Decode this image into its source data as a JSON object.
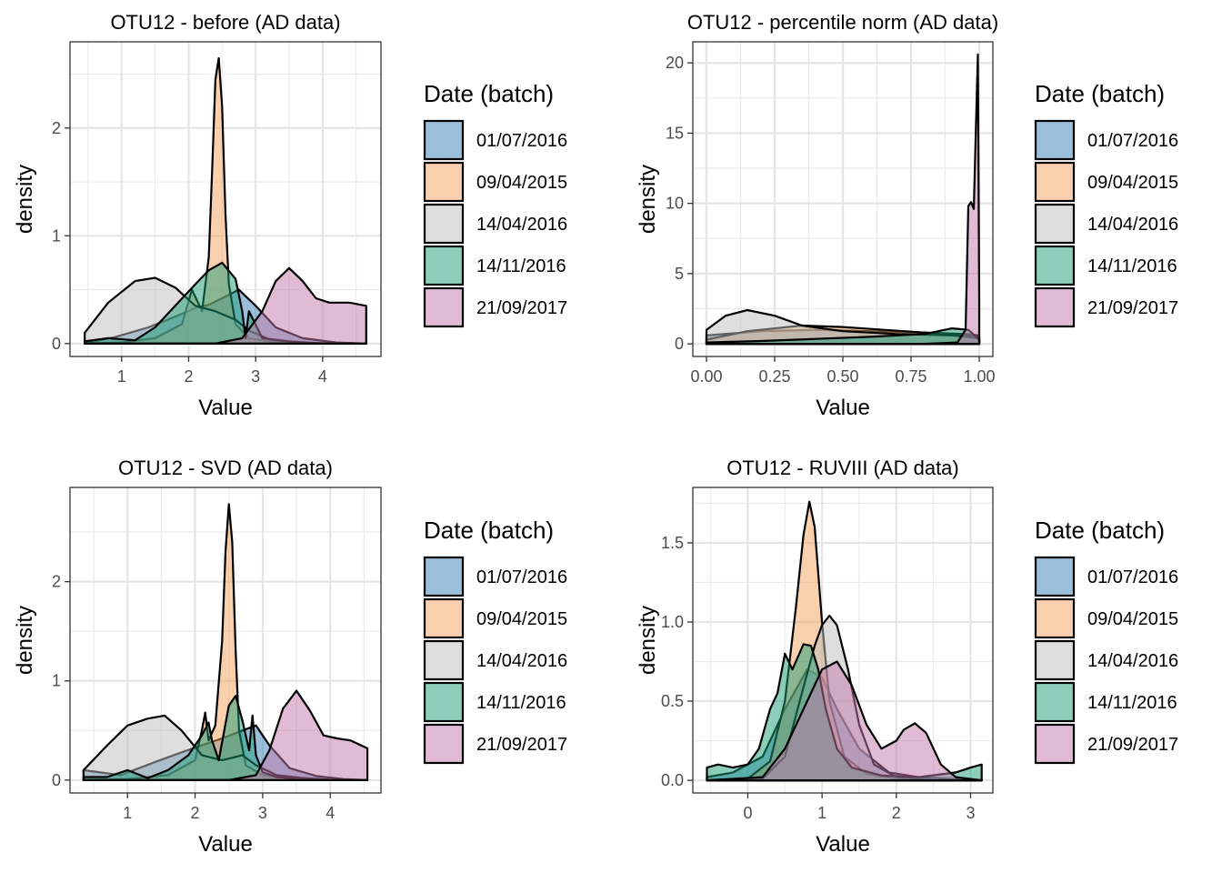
{
  "legend": {
    "title": "Date (batch)",
    "entries": [
      {
        "label": "01/07/2016",
        "color": "#377eb8"
      },
      {
        "label": "09/04/2015",
        "color": "#f4a15c"
      },
      {
        "label": "14/04/2016",
        "color": "#bdbdbd"
      },
      {
        "label": "14/11/2016",
        "color": "#1b9e77"
      },
      {
        "label": "21/09/2017",
        "color": "#c377a8"
      }
    ]
  },
  "chart_data": [
    {
      "type": "area",
      "title": "OTU12 - before (AD data)",
      "xlabel": "Value",
      "ylabel": "density",
      "xlim": [
        0.23,
        4.87
      ],
      "ylim": [
        -0.12,
        2.8
      ],
      "xticks": [
        1,
        2,
        3,
        4
      ],
      "yticks": [
        0,
        1,
        2
      ],
      "grid": true,
      "series": [
        {
          "name": "01/07/2016",
          "x": [
            0.45,
            0.9,
            1.4,
            1.8,
            2.1,
            2.3,
            2.5,
            2.75,
            3.0,
            3.3,
            3.7,
            4.2,
            4.65
          ],
          "y": [
            0,
            0.06,
            0.15,
            0.25,
            0.33,
            0.36,
            0.42,
            0.5,
            0.35,
            0.15,
            0.05,
            0.01,
            0
          ]
        },
        {
          "name": "09/04/2015",
          "x": [
            0.45,
            1.0,
            1.5,
            1.9,
            2.05,
            2.2,
            2.3,
            2.35,
            2.4,
            2.45,
            2.5,
            2.55,
            2.6,
            2.7,
            2.9,
            3.2,
            3.6,
            4.0,
            4.65
          ],
          "y": [
            0,
            0.01,
            0.05,
            0.18,
            0.5,
            0.3,
            0.8,
            1.6,
            2.45,
            2.65,
            2.2,
            1.2,
            0.55,
            0.18,
            0.05,
            0.02,
            0.01,
            0,
            0
          ]
        },
        {
          "name": "14/04/2016",
          "x": [
            0.45,
            0.8,
            1.2,
            1.5,
            1.8,
            2.1,
            2.4,
            2.7,
            2.9,
            3.2,
            3.6,
            4.2,
            4.65
          ],
          "y": [
            0.1,
            0.38,
            0.58,
            0.61,
            0.52,
            0.35,
            0.3,
            0.22,
            0.12,
            0.04,
            0.01,
            0,
            0
          ]
        },
        {
          "name": "14/11/2016",
          "x": [
            0.45,
            0.8,
            1.2,
            1.5,
            1.8,
            2.1,
            2.3,
            2.5,
            2.7,
            2.8,
            2.85,
            2.9,
            3.1,
            3.5,
            4.0,
            4.65
          ],
          "y": [
            0.02,
            0.05,
            0.03,
            0.15,
            0.35,
            0.55,
            0.68,
            0.75,
            0.6,
            0.3,
            0.05,
            0.3,
            0.05,
            0.02,
            0,
            0
          ]
        },
        {
          "name": "21/09/2017",
          "x": [
            0.45,
            1.5,
            2.4,
            2.8,
            3.1,
            3.3,
            3.5,
            3.7,
            3.9,
            4.1,
            4.4,
            4.65
          ],
          "y": [
            0,
            0,
            0,
            0.05,
            0.3,
            0.58,
            0.7,
            0.58,
            0.42,
            0.38,
            0.38,
            0.35
          ]
        }
      ]
    },
    {
      "type": "area",
      "title": "OTU12 - percentile norm (AD data)",
      "xlabel": "Value",
      "ylabel": "density",
      "xlim": [
        -0.05,
        1.05
      ],
      "ylim": [
        -0.9,
        21.5
      ],
      "xticks": [
        0,
        0.25,
        0.5,
        0.75,
        1
      ],
      "xticklabels": [
        "0.00",
        "0.25",
        "0.50",
        "0.75",
        "1.00"
      ],
      "yticks": [
        0,
        5,
        10,
        15,
        20
      ],
      "grid": true,
      "series": [
        {
          "name": "01/07/2016",
          "x": [
            0,
            0.2,
            0.4,
            0.6,
            0.8,
            0.95,
            1.0
          ],
          "y": [
            0.6,
            0.9,
            1.0,
            0.9,
            0.8,
            0.7,
            0.6
          ]
        },
        {
          "name": "09/04/2015",
          "x": [
            0,
            0.15,
            0.35,
            0.5,
            0.65,
            0.8,
            0.95,
            1.0
          ],
          "y": [
            0.3,
            0.9,
            1.3,
            1.2,
            1.0,
            0.8,
            0.6,
            0.5
          ]
        },
        {
          "name": "14/04/2016",
          "x": [
            0,
            0.07,
            0.15,
            0.25,
            0.35,
            0.5,
            0.7,
            0.9,
            1.0
          ],
          "y": [
            1.0,
            2.0,
            2.4,
            2.0,
            1.3,
            0.9,
            0.7,
            0.6,
            0.4
          ]
        },
        {
          "name": "14/11/2016",
          "x": [
            0,
            0.2,
            0.4,
            0.6,
            0.8,
            0.9,
            0.96,
            1.0
          ],
          "y": [
            0.1,
            0.2,
            0.35,
            0.5,
            0.7,
            1.1,
            1.0,
            0.3
          ]
        },
        {
          "name": "21/09/2017",
          "x": [
            0,
            0.8,
            0.92,
            0.95,
            0.96,
            0.97,
            0.98,
            0.99,
            0.995,
            1.0
          ],
          "y": [
            0,
            0,
            0.1,
            1.0,
            9.8,
            10.1,
            9.6,
            17.0,
            20.6,
            3.0
          ]
        }
      ]
    },
    {
      "type": "area",
      "title": "OTU12 - SVD (AD data)",
      "xlabel": "Value",
      "ylabel": "density",
      "xlim": [
        0.15,
        4.75
      ],
      "ylim": [
        -0.13,
        2.95
      ],
      "xticks": [
        1,
        2,
        3,
        4
      ],
      "yticks": [
        0,
        1,
        2
      ],
      "grid": true,
      "series": [
        {
          "name": "01/07/2016",
          "x": [
            0.35,
            0.9,
            1.4,
            1.8,
            2.1,
            2.4,
            2.7,
            2.9,
            3.1,
            3.4,
            3.8,
            4.2,
            4.55
          ],
          "y": [
            0.1,
            0.05,
            0.18,
            0.28,
            0.35,
            0.42,
            0.5,
            0.55,
            0.35,
            0.12,
            0.04,
            0.01,
            0
          ]
        },
        {
          "name": "09/04/2015",
          "x": [
            0.35,
            1.0,
            1.6,
            2.0,
            2.1,
            2.15,
            2.2,
            2.3,
            2.4,
            2.45,
            2.5,
            2.55,
            2.6,
            2.65,
            2.75,
            3.0,
            3.4,
            3.9,
            4.55
          ],
          "y": [
            0,
            0.01,
            0.05,
            0.2,
            0.5,
            0.68,
            0.4,
            0.55,
            1.4,
            2.3,
            2.78,
            2.4,
            1.3,
            0.5,
            0.15,
            0.05,
            0.02,
            0,
            0
          ]
        },
        {
          "name": "14/04/2016",
          "x": [
            0.35,
            0.7,
            1.0,
            1.3,
            1.55,
            1.8,
            2.1,
            2.4,
            2.7,
            2.9,
            3.2,
            3.6,
            4.1,
            4.55
          ],
          "y": [
            0.1,
            0.35,
            0.55,
            0.62,
            0.65,
            0.5,
            0.25,
            0.2,
            0.25,
            0.15,
            0.05,
            0.02,
            0,
            0
          ]
        },
        {
          "name": "14/11/2016",
          "x": [
            0.35,
            0.7,
            1.0,
            1.3,
            1.6,
            1.9,
            2.1,
            2.2,
            2.25,
            2.35,
            2.5,
            2.6,
            2.7,
            2.8,
            2.85,
            2.9,
            3.0,
            3.2,
            3.6,
            4.0,
            4.55
          ],
          "y": [
            0.03,
            0.03,
            0.1,
            0.02,
            0.1,
            0.25,
            0.45,
            0.58,
            0.4,
            0.2,
            0.75,
            0.85,
            0.6,
            0.3,
            0.65,
            0.25,
            0.08,
            0.03,
            0.01,
            0,
            0
          ]
        },
        {
          "name": "21/09/2017",
          "x": [
            0.35,
            1.5,
            2.5,
            2.9,
            3.1,
            3.3,
            3.5,
            3.7,
            3.9,
            4.1,
            4.3,
            4.55
          ],
          "y": [
            0,
            0,
            0,
            0.05,
            0.3,
            0.72,
            0.9,
            0.7,
            0.45,
            0.42,
            0.4,
            0.32
          ]
        }
      ]
    },
    {
      "type": "area",
      "title": "OTU12 - RUVIII (AD data)",
      "xlabel": "Value",
      "ylabel": "density",
      "xlim": [
        -0.74,
        3.3
      ],
      "ylim": [
        -0.08,
        1.85
      ],
      "xticks": [
        0,
        1,
        2,
        3
      ],
      "yticks": [
        0,
        0.5,
        1,
        1.5
      ],
      "yticklabels": [
        "0.0",
        "0.5",
        "1.0",
        "1.5"
      ],
      "grid": true,
      "series": [
        {
          "name": "01/07/2016",
          "x": [
            -0.55,
            -0.2,
            0.2,
            0.5,
            0.8,
            1.0,
            1.2,
            1.5,
            1.9,
            2.3,
            2.7,
            3.15
          ],
          "y": [
            0.02,
            0.05,
            0.15,
            0.45,
            0.7,
            0.65,
            0.45,
            0.2,
            0.05,
            0.02,
            0.01,
            0
          ]
        },
        {
          "name": "09/04/2015",
          "x": [
            -0.55,
            0,
            0.3,
            0.5,
            0.65,
            0.75,
            0.83,
            0.9,
            1.0,
            1.1,
            1.3,
            1.6,
            2.0,
            2.5,
            3.15
          ],
          "y": [
            0,
            0.01,
            0.12,
            0.5,
            1.1,
            1.55,
            1.76,
            1.6,
            1.0,
            0.5,
            0.15,
            0.04,
            0.01,
            0,
            0
          ]
        },
        {
          "name": "14/04/2016",
          "x": [
            -0.55,
            0.2,
            0.5,
            0.7,
            0.9,
            1.0,
            1.1,
            1.2,
            1.35,
            1.5,
            1.7,
            2.0,
            2.5,
            3.15
          ],
          "y": [
            0,
            0.01,
            0.15,
            0.5,
            0.85,
            0.98,
            1.04,
            0.98,
            0.7,
            0.35,
            0.1,
            0.02,
            0,
            0
          ]
        },
        {
          "name": "14/11/2016",
          "x": [
            -0.55,
            -0.4,
            -0.2,
            0,
            0.15,
            0.3,
            0.4,
            0.5,
            0.6,
            0.75,
            0.85,
            0.95,
            1.05,
            1.2,
            1.4,
            1.8,
            2.3,
            2.8,
            3.0,
            3.15
          ],
          "y": [
            0.08,
            0.1,
            0.08,
            0.1,
            0.2,
            0.45,
            0.55,
            0.8,
            0.7,
            0.86,
            0.85,
            0.7,
            0.45,
            0.2,
            0.08,
            0.03,
            0.02,
            0.05,
            0.08,
            0.1
          ]
        },
        {
          "name": "21/09/2017",
          "x": [
            -0.55,
            0.2,
            0.5,
            0.8,
            1.0,
            1.2,
            1.4,
            1.6,
            1.8,
            2.0,
            2.1,
            2.25,
            2.4,
            2.6,
            2.8,
            3.15
          ],
          "y": [
            0,
            0.02,
            0.2,
            0.5,
            0.7,
            0.75,
            0.6,
            0.35,
            0.2,
            0.25,
            0.32,
            0.36,
            0.3,
            0.1,
            0.02,
            0
          ]
        }
      ]
    }
  ]
}
